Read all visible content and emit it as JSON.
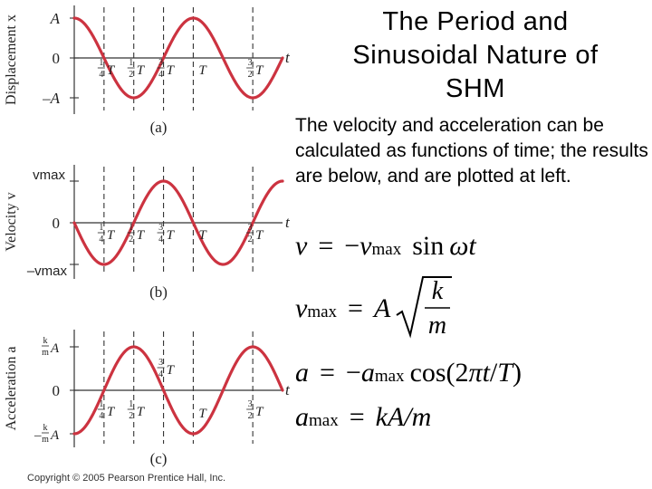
{
  "title_lines": [
    "The Period and",
    "Sinusoidal Nature of",
    "SHM"
  ],
  "body_text": "The velocity and acceleration can be calculated as functions of time; the results are below, and are plotted at left.",
  "equations": {
    "v": {
      "lhs": "v",
      "eq": "=",
      "minus": "−",
      "var": "v",
      "sub": "max",
      "fn": "sin",
      "arg": "ωt"
    },
    "vmax": {
      "lhs": "v",
      "sub": "max",
      "eq": "=",
      "var": "A",
      "num": "k",
      "den": "m"
    },
    "a": {
      "lhs": "a",
      "eq": "=",
      "minus": "−",
      "var": "a",
      "sub": "max",
      "fn": "cos(2",
      "pi": "π",
      "t": "t",
      "slash": "/",
      "T": "T",
      "close": ")"
    },
    "amax": {
      "lhs": "a",
      "sub": "max",
      "eq": "=",
      "rhs": "kA/m"
    }
  },
  "copyright": "Copyright © 2005 Pearson Prentice Hall, Inc.",
  "colors": {
    "curve": "#cc3340",
    "axis": "#333333",
    "dash": "#333333"
  },
  "chart_data": [
    {
      "type": "line",
      "panel_label": "(a)",
      "ylabel": "Displacement x",
      "xlabel": "t",
      "ytick_labels": [
        "A",
        "0",
        "–A"
      ],
      "yticks": [
        1,
        0,
        -1
      ],
      "xtick_labels": [
        "1/4 T",
        "1/2 T",
        "3/4 T",
        "T",
        "3/2 T"
      ],
      "xticks": [
        0.25,
        0.5,
        0.75,
        1.0,
        1.5
      ],
      "dashed_x": [
        0.25,
        0.5,
        0.75,
        1.0,
        1.5
      ],
      "curve": "cos",
      "xlim": [
        0,
        1.75
      ],
      "ylim": [
        -1,
        1
      ]
    },
    {
      "type": "line",
      "panel_label": "(b)",
      "ylabel": "Velocity v",
      "xlabel": "t",
      "ytick_labels": [
        "vmax",
        "0",
        "–vmax"
      ],
      "yticks": [
        1,
        0,
        -1
      ],
      "xtick_labels": [
        "1/4 T",
        "1/2 T",
        "3/4 T",
        "T",
        "3/2 T"
      ],
      "xticks": [
        0.25,
        0.5,
        0.75,
        1.0,
        1.5
      ],
      "dashed_x": [
        0.25,
        0.5,
        0.75,
        1.0,
        1.5
      ],
      "curve": "-sin",
      "xlim": [
        0,
        1.75
      ],
      "ylim": [
        -1,
        1
      ]
    },
    {
      "type": "line",
      "panel_label": "(c)",
      "ylabel": "Acceleration a",
      "xlabel": "t",
      "ytick_labels": [
        "k/m A",
        "0",
        "– k/m A"
      ],
      "yticks": [
        1,
        0,
        -1
      ],
      "xtick_labels": [
        "1/4 T",
        "1/2 T",
        "3/4 T",
        "T",
        "3/2 T"
      ],
      "xticks": [
        0.25,
        0.5,
        0.75,
        1.0,
        1.5
      ],
      "dashed_x": [
        0.25,
        0.5,
        0.75,
        1.0,
        1.5
      ],
      "curve": "-cos",
      "xlim": [
        0,
        1.75
      ],
      "ylim": [
        -1,
        1
      ]
    }
  ]
}
